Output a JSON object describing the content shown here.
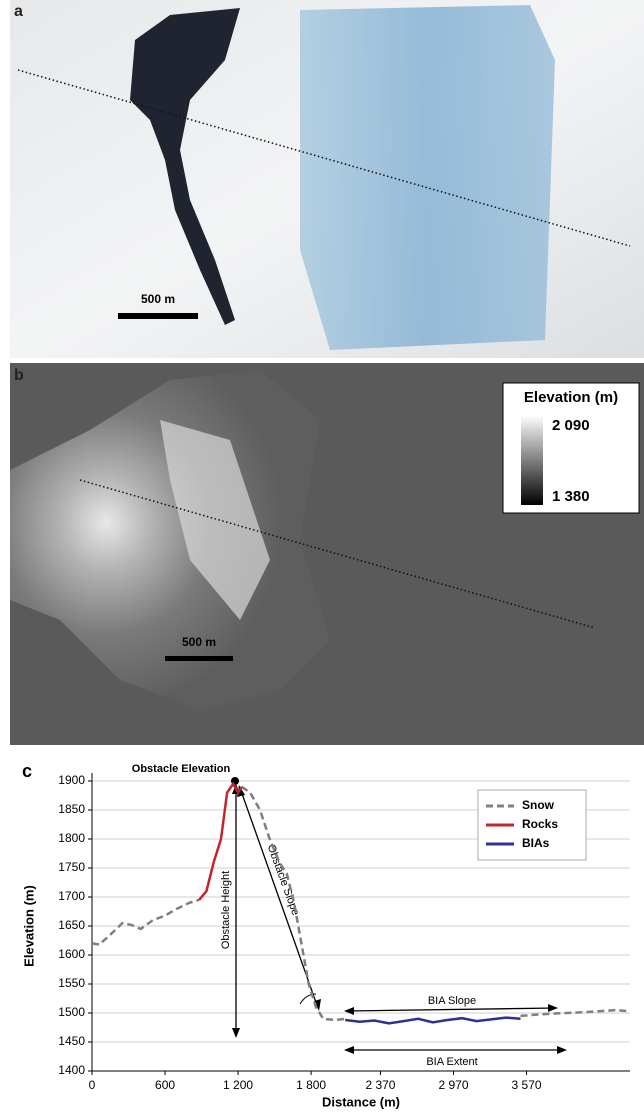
{
  "panels": {
    "a": {
      "label": "a",
      "scale_bar": "500 m"
    },
    "b": {
      "label": "b",
      "scale_bar": "500 m",
      "legend": {
        "title": "Elevation (m)",
        "max": "2 090",
        "min": "1 380"
      }
    }
  },
  "chart_data": {
    "type": "line",
    "panel_label": "c",
    "x_label": "Distance (m)",
    "y_label": "Elevation (m)",
    "xlim": [
      0,
      4420
    ],
    "ylim": [
      1400,
      1900
    ],
    "xticks": [
      0,
      600,
      {
        "value": 1200,
        "label": "1 200"
      },
      {
        "value": 1800,
        "label": "1 800"
      },
      {
        "value": 2370,
        "label": "2 370"
      },
      {
        "value": 2970,
        "label": "2 970"
      },
      {
        "value": 3570,
        "label": "3 570"
      }
    ],
    "yticks": [
      1400,
      1450,
      1500,
      1550,
      1600,
      1650,
      1700,
      1750,
      1800,
      1850,
      1900
    ],
    "grid": true,
    "legend_position": "upper right",
    "annotations": [
      "Obstacle Elevation",
      "Obstacle Height",
      "Obstacle Slope",
      "BIA Slope",
      "BIA Extent"
    ],
    "series": [
      {
        "name": "Snow",
        "color": "#7f7f7f",
        "dashed": true,
        "x": [
          0,
          60,
          150,
          250,
          320,
          400,
          500,
          600,
          700,
          800,
          880,
          1000,
          1230,
          1300,
          1380,
          1460,
          1540,
          1600,
          1660,
          1720,
          1780,
          1840,
          1900,
          2000,
          2080,
          2500,
          3520,
          3700,
          3900,
          4100,
          4300,
          4420
        ],
        "values": [
          1620,
          1618,
          1635,
          1655,
          1652,
          1645,
          1660,
          1668,
          1680,
          1690,
          1695,
          null,
          1890,
          1880,
          1850,
          1800,
          1760,
          1740,
          1690,
          1620,
          1550,
          1510,
          1490,
          1488,
          1490,
          null,
          1495,
          1498,
          1500,
          1502,
          1505,
          1503
        ]
      },
      {
        "name": "Rocks",
        "color": "#c0272d",
        "dashed": false,
        "x": [
          880,
          940,
          1000,
          1060,
          1110,
          1160,
          1200,
          1230
        ],
        "values": [
          1695,
          1710,
          1760,
          1800,
          1880,
          1895,
          1880,
          1890
        ]
      },
      {
        "name": "BIAs",
        "color": "#2e3192",
        "dashed": false,
        "x": [
          2080,
          2200,
          2320,
          2440,
          2560,
          2680,
          2800,
          2920,
          3040,
          3160,
          3280,
          3400,
          3520
        ],
        "values": [
          1488,
          1485,
          1487,
          1482,
          1486,
          1490,
          1484,
          1488,
          1491,
          1486,
          1489,
          1492,
          1490
        ]
      }
    ]
  }
}
